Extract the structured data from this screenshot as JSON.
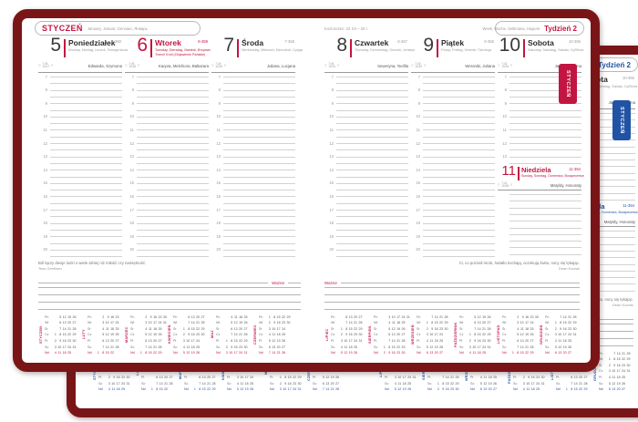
{
  "accent": {
    "front": "#c21541",
    "back": "#2153a4"
  },
  "frame_color": "#7a1517",
  "tab_label": "STYCZEŃ",
  "month_header": {
    "title": "STYCZEŃ",
    "subtitle": "January, Januar, Gennaio, Январь"
  },
  "week_header": {
    "zodiac": "Koziorożec: 22 XII – 20 I",
    "languages": "Week, Woche, Settimana, Неделя",
    "week": "Tydzień 2"
  },
  "hours": [
    "7",
    "8",
    "9",
    "10",
    "11",
    "12",
    "13",
    "14",
    "15",
    "16",
    "17",
    "18",
    "19",
    "20"
  ],
  "days": [
    {
      "num": "5",
      "name": "Poniedziałek",
      "langs": "Monday, Montag, Lunedì, Понедельник",
      "code": "5-360",
      "names": "Edwarda, Szymona",
      "sun_up": "7:45",
      "sun_down": "15:47",
      "special": false
    },
    {
      "num": "6",
      "name": "Wtorek",
      "langs": "Tuesday, Dienstag, Martedì, Вторник",
      "holiday": "Trzech Króli (Objawienie Pańskie)",
      "code": "6-359",
      "names": "Kacpra, Melchiora, Baltazara",
      "sun_up": "7:45",
      "sun_down": "15:48",
      "special": true
    },
    {
      "num": "7",
      "name": "Środa",
      "langs": "Wednesday, Mittwoch, Mercoledì, Среда",
      "code": "7-358",
      "names": "Juliana, Lucjana",
      "sun_up": "7:44",
      "sun_down": "15:49",
      "special": false
    },
    {
      "num": "8",
      "name": "Czwartek",
      "langs": "Thursday, Donnerstag, Giovedì, Четверг",
      "code": "8-357",
      "names": "Seweryna, Teofila",
      "sun_up": "7:44",
      "sun_down": "15:51",
      "special": false
    },
    {
      "num": "9",
      "name": "Piątek",
      "langs": "Friday, Freitag, Venerdì, Пятница",
      "code": "9-356",
      "names": "Weroniki, Juliana",
      "sun_up": "7:43",
      "sun_down": "15:52",
      "special": false
    },
    {
      "num": "10",
      "name": "Sobota",
      "langs": "Saturday, Samstag, Sabato, Суббота",
      "code": "10-355",
      "names": "Jana, Wilhelma",
      "sun_up": "7:42",
      "sun_down": "15:54",
      "special": false
    },
    {
      "num": "11",
      "name": "Niedziela",
      "langs": "Sunday, Sonntag, Domenica, Воскресенье",
      "code": "11-354",
      "names": "Matyldy, Honoraty",
      "sun_up": "7:41",
      "sun_down": "15:55",
      "special": true
    }
  ],
  "quotes": {
    "left": {
      "text": "Ból łączy dwoje ludzi o wiele silniej niż miłość czy namiętność.",
      "author": "Tess Gerritsen"
    },
    "right": {
      "text": "Ci, co poznali mrok, światło kochają, oczekują świtu, nocy się lękając.",
      "author": "Dean Koontz"
    }
  },
  "important_label": "Ważne",
  "mini_calendar": {
    "dow": [
      "Pn",
      "Wt",
      "Śr",
      "Cz",
      "Pt",
      "So",
      "Nd"
    ],
    "months": [
      {
        "name": "STYCZEŃ",
        "first_dow": 3,
        "days": 31
      },
      {
        "name": "LUTY",
        "first_dow": 6,
        "days": 28
      },
      {
        "name": "MARZEC",
        "first_dow": 6,
        "days": 31
      },
      {
        "name": "KWIECIEŃ",
        "first_dow": 2,
        "days": 30
      },
      {
        "name": "MAJ",
        "first_dow": 4,
        "days": 31
      },
      {
        "name": "CZERWIEC",
        "first_dow": 0,
        "days": 30
      },
      {
        "name": "LIPIEC",
        "first_dow": 2,
        "days": 31
      },
      {
        "name": "SIERPIEŃ",
        "first_dow": 5,
        "days": 31
      },
      {
        "name": "WRZESIEŃ",
        "first_dow": 1,
        "days": 30
      },
      {
        "name": "PAŹDZIERNIK",
        "first_dow": 3,
        "days": 31
      },
      {
        "name": "LISTOPAD",
        "first_dow": 6,
        "days": 30
      },
      {
        "name": "GRUDZIEŃ",
        "first_dow": 1,
        "days": 31
      }
    ]
  }
}
